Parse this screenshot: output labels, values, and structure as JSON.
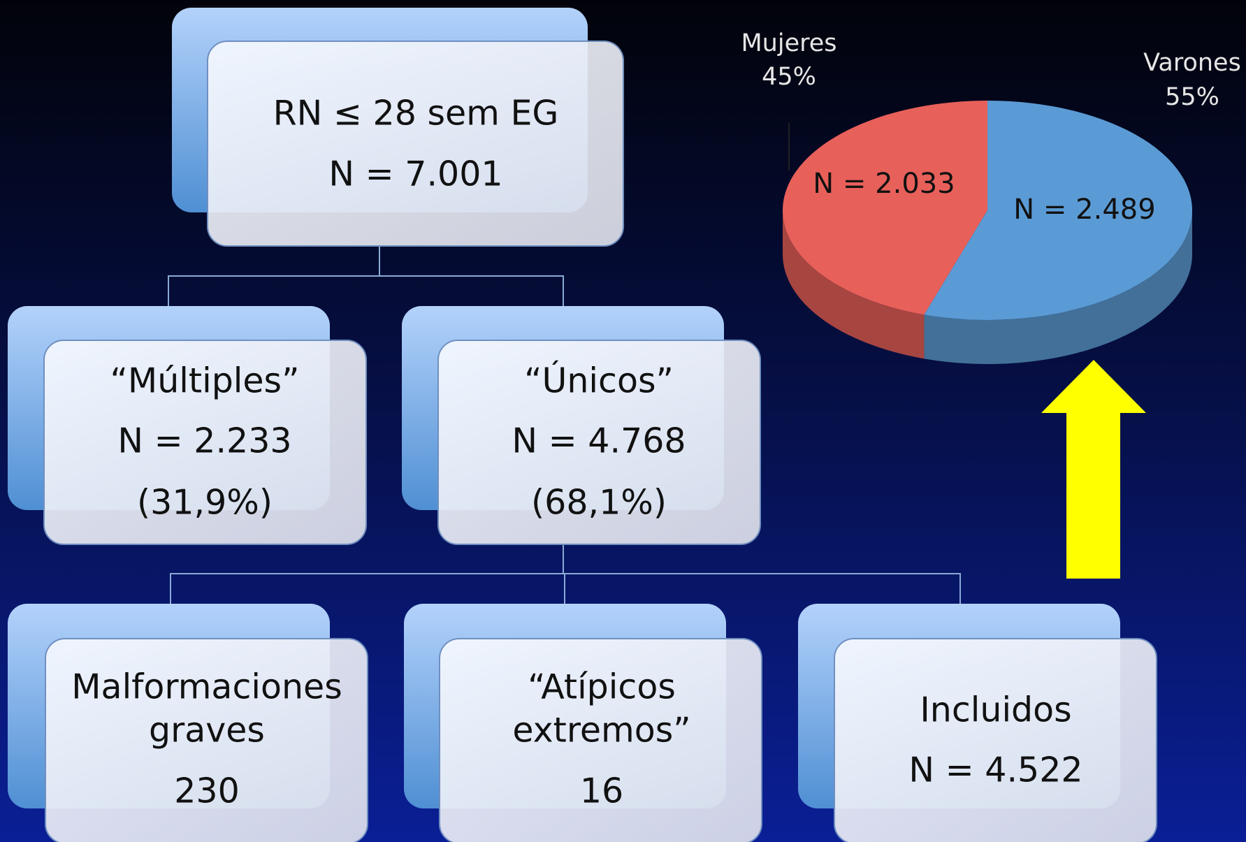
{
  "nodes": [
    {
      "lines": [
        "RN ≤ 28 sem EG",
        "N = 7.001"
      ]
    },
    {
      "lines": [
        "“Múltiples”",
        "N = 2.233",
        "(31,9%)"
      ]
    },
    {
      "lines": [
        "“Únicos”",
        "N = 4.768",
        "(68,1%)"
      ]
    },
    {
      "lines": [
        "Malformaciones",
        "graves",
        "230"
      ]
    },
    {
      "lines": [
        "“Atípicos",
        "extremos”",
        "16"
      ]
    },
    {
      "lines": [
        "Incluidos",
        "N = 4.522"
      ]
    }
  ],
  "chart_data": {
    "type": "pie",
    "categories": [
      "Mujeres",
      "Varones"
    ],
    "values": [
      45,
      55
    ],
    "value_labels": [
      "45%",
      "55%"
    ],
    "count_labels": [
      "N = 2.033",
      "N = 2.489"
    ],
    "colors": [
      "#e8605a",
      "#5b9bd5"
    ]
  }
}
